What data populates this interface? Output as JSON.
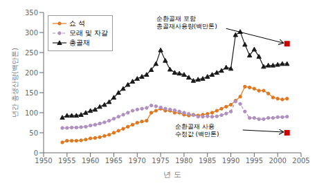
{
  "chart_data": {
    "type": "line",
    "xlabel": "년 도",
    "ylabel": "년간 총생산량(백만톤)",
    "xlim": [
      1950,
      2005
    ],
    "ylim": [
      0,
      350
    ],
    "xticks": [
      1950,
      1955,
      1960,
      1965,
      1970,
      1975,
      1980,
      1985,
      1990,
      1995,
      2000,
      2005
    ],
    "yticks": [
      0,
      50,
      100,
      150,
      200,
      250,
      300,
      350
    ],
    "grid": false,
    "legend": "upper left",
    "x": [
      1954,
      1955,
      1956,
      1957,
      1958,
      1959,
      1960,
      1961,
      1962,
      1963,
      1964,
      1965,
      1966,
      1967,
      1968,
      1969,
      1970,
      1971,
      1972,
      1973,
      1974,
      1975,
      1976,
      1977,
      1978,
      1979,
      1980,
      1981,
      1982,
      1983,
      1984,
      1985,
      1986,
      1987,
      1988,
      1989,
      1990,
      1991,
      1992,
      1993,
      1994,
      1995,
      1996,
      1997,
      1998,
      1999,
      2000,
      2001,
      2002
    ],
    "series": [
      {
        "name": "쇼 석",
        "color": "#e07820",
        "marker": "circle",
        "line_style": "solid",
        "values": [
          26,
          30,
          30,
          30,
          31,
          33,
          36,
          37,
          39,
          42,
          45,
          50,
          55,
          60,
          65,
          70,
          75,
          78,
          80,
          100,
          105,
          110,
          105,
          105,
          100,
          100,
          95,
          93,
          95,
          93,
          95,
          97,
          100,
          105,
          110,
          115,
          120,
          130,
          140,
          165,
          163,
          160,
          155,
          155,
          148,
          138,
          135,
          133,
          135
        ]
      },
      {
        "name": "모래 및 자갈",
        "color": "#b090c0",
        "marker": "circle",
        "line_style": "dashed",
        "values": [
          62,
          62,
          63,
          63,
          64,
          65,
          68,
          70,
          73,
          76,
          80,
          85,
          90,
          95,
          100,
          105,
          108,
          110,
          112,
          118,
          116,
          113,
          110,
          108,
          106,
          103,
          100,
          97,
          94,
          90,
          90,
          91,
          90,
          91,
          94,
          98,
          103,
          128,
          122,
          103,
          87,
          87,
          84,
          84,
          87,
          87,
          89,
          89,
          90
        ]
      },
      {
        "name": "총골재",
        "color": "#1a1a1a",
        "marker": "triangle",
        "line_style": "solid",
        "values": [
          88,
          93,
          93,
          93,
          95,
          100,
          105,
          108,
          115,
          120,
          127,
          138,
          150,
          160,
          170,
          178,
          185,
          190,
          195,
          207,
          222,
          256,
          230,
          208,
          200,
          198,
          195,
          188,
          180,
          183,
          185,
          190,
          195,
          200,
          205,
          213,
          210,
          294,
          302,
          270,
          243,
          258,
          240,
          215,
          218,
          218,
          220,
          222,
          222
        ]
      }
    ],
    "annotations": [
      {
        "text": "순환골재 포함\n총골재사용량(백만톤)",
        "x": 2002,
        "y": 272,
        "color": "#cc0000",
        "marker": "square"
      },
      {
        "text": "순환골재 사용\n수정값 (백만톤)",
        "x": 2002,
        "y": 50,
        "color": "#cc0000",
        "marker": "square"
      }
    ]
  }
}
